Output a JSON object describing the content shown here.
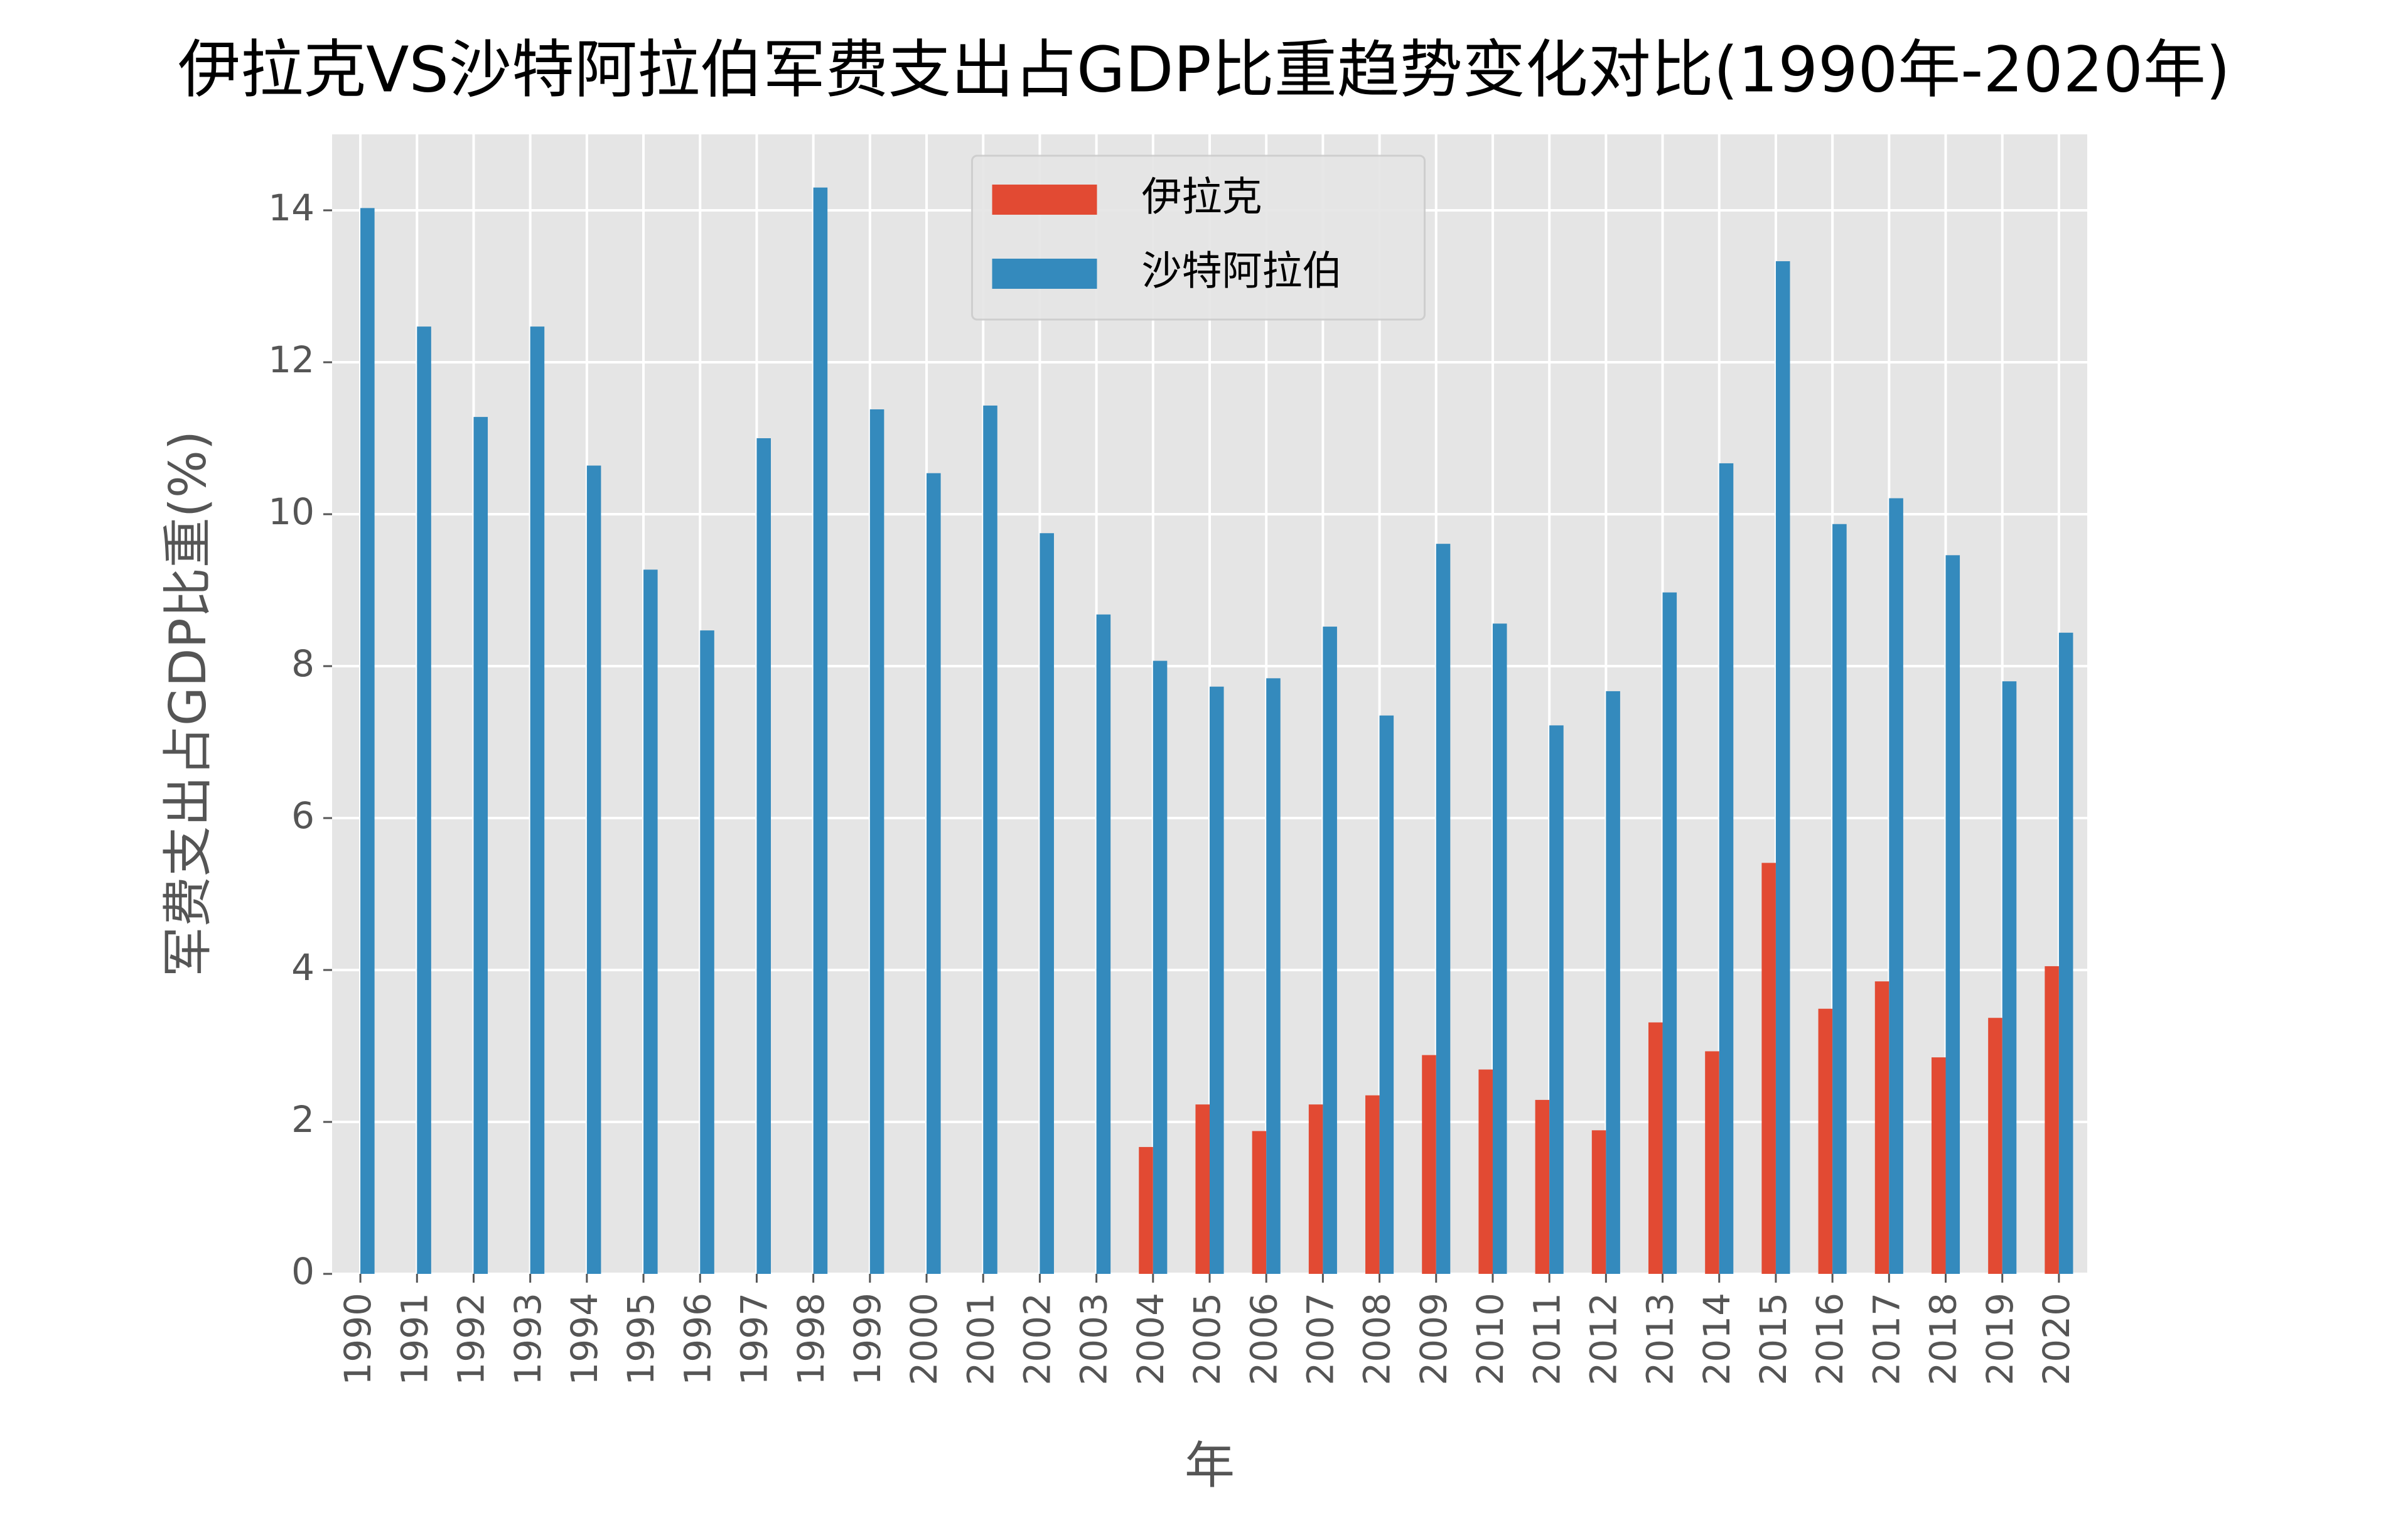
{
  "chart_data": {
    "type": "bar",
    "title": "伊拉克VS沙特阿拉伯军费支出占GDP比重趋势变化对比(1990年-2020年)",
    "x_label": "年",
    "y_label": "军费支出占GDP比重(%)",
    "categories": [
      "1990",
      "1991",
      "1992",
      "1993",
      "1994",
      "1995",
      "1996",
      "1997",
      "1998",
      "1999",
      "2000",
      "2001",
      "2002",
      "2003",
      "2004",
      "2005",
      "2006",
      "2007",
      "2008",
      "2009",
      "2010",
      "2011",
      "2012",
      "2013",
      "2014",
      "2015",
      "2016",
      "2017",
      "2018",
      "2019",
      "2020"
    ],
    "series": [
      {
        "name": "伊拉克",
        "color": "#e24a33",
        "values": [
          null,
          null,
          null,
          null,
          null,
          null,
          null,
          null,
          null,
          null,
          null,
          null,
          null,
          null,
          1.67,
          2.23,
          1.88,
          2.23,
          2.35,
          2.88,
          2.69,
          2.29,
          1.89,
          3.31,
          2.93,
          5.41,
          3.49,
          3.85,
          2.85,
          3.37,
          4.05
        ]
      },
      {
        "name": "沙特阿拉伯",
        "color": "#348abd",
        "values": [
          14.03,
          12.47,
          11.28,
          12.47,
          10.64,
          9.27,
          8.47,
          11.0,
          14.3,
          11.38,
          10.54,
          11.43,
          9.75,
          8.68,
          8.07,
          7.73,
          7.84,
          8.52,
          7.35,
          9.61,
          8.56,
          7.22,
          7.67,
          8.97,
          10.67,
          13.33,
          9.87,
          10.21,
          9.46,
          7.8,
          8.44
        ]
      }
    ],
    "ylim": [
      0,
      15
    ],
    "yticks": [
      0,
      2,
      4,
      6,
      8,
      10,
      12,
      14
    ],
    "grid": true,
    "legend": "upper center"
  }
}
